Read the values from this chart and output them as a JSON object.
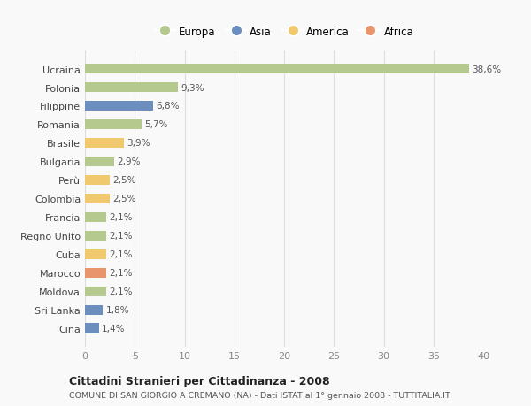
{
  "categories": [
    "Ucraina",
    "Polonia",
    "Filippine",
    "Romania",
    "Brasile",
    "Bulgaria",
    "Perù",
    "Colombia",
    "Francia",
    "Regno Unito",
    "Cuba",
    "Marocco",
    "Moldova",
    "Sri Lanka",
    "Cina"
  ],
  "values": [
    38.6,
    9.3,
    6.8,
    5.7,
    3.9,
    2.9,
    2.5,
    2.5,
    2.1,
    2.1,
    2.1,
    2.1,
    2.1,
    1.8,
    1.4
  ],
  "labels": [
    "38,6%",
    "9,3%",
    "6,8%",
    "5,7%",
    "3,9%",
    "2,9%",
    "2,5%",
    "2,5%",
    "2,1%",
    "2,1%",
    "2,1%",
    "2,1%",
    "2,1%",
    "1,8%",
    "1,4%"
  ],
  "colors": [
    "#b5c98e",
    "#b5c98e",
    "#6b8ebf",
    "#b5c98e",
    "#f0c96e",
    "#b5c98e",
    "#f0c96e",
    "#f0c96e",
    "#b5c98e",
    "#b5c98e",
    "#f0c96e",
    "#e8956d",
    "#b5c98e",
    "#6b8ebf",
    "#6b8ebf"
  ],
  "legend_labels": [
    "Europa",
    "Asia",
    "America",
    "Africa"
  ],
  "legend_colors": [
    "#b5c98e",
    "#6b8ebf",
    "#f0c96e",
    "#e8956d"
  ],
  "xlim": [
    0,
    40
  ],
  "xticks": [
    0,
    5,
    10,
    15,
    20,
    25,
    30,
    35,
    40
  ],
  "title": "Cittadini Stranieri per Cittadinanza - 2008",
  "subtitle": "COMUNE DI SAN GIORGIO A CREMANO (NA) - Dati ISTAT al 1° gennaio 2008 - TUTTITALIA.IT",
  "bg_color": "#f9f9f9",
  "grid_color": "#dddddd",
  "bar_height": 0.55
}
